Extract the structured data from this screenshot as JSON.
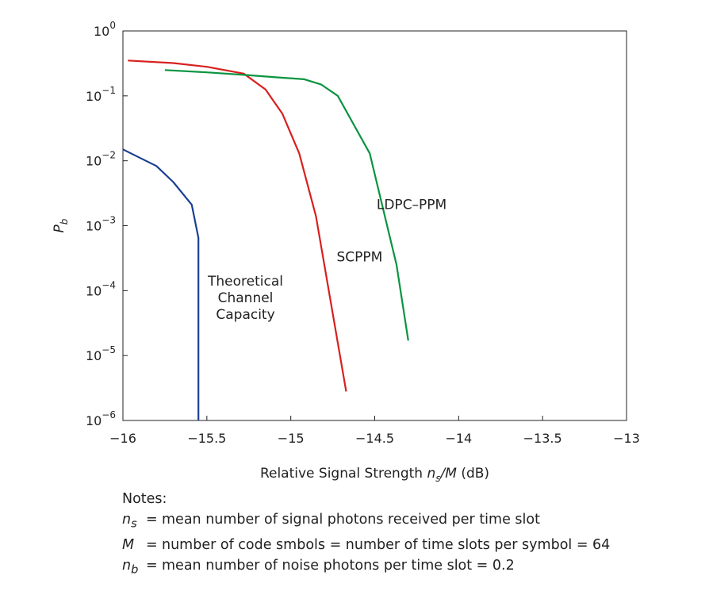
{
  "chart_data": {
    "type": "line",
    "title": "",
    "xlabel_prefix": "Relative Signal Strength ",
    "xlabel_math": "ns/M",
    "xlabel_suffix": " (dB)",
    "ylabel": "Pb",
    "xlim": [
      -16,
      -13
    ],
    "ylim_log10": [
      -6,
      0
    ],
    "y_scale": "log",
    "x_ticks": [
      -16,
      -15.5,
      -15,
      -14.5,
      -14,
      -13.5,
      -13
    ],
    "x_tick_labels": [
      "−16",
      "−15.5",
      "−15",
      "−14.5",
      "−14",
      "−13.5",
      "−13"
    ],
    "y_tick_exponents": [
      0,
      -1,
      -2,
      -3,
      -4,
      -5,
      -6
    ],
    "y_tick_exponent_labels": [
      "0",
      "−1",
      "−2",
      "−3",
      "−4",
      "−5",
      "−6"
    ],
    "y_tick_base": "10",
    "series": [
      {
        "name": "Theoretical Channel Capacity",
        "label_lines": [
          "Theoretical",
          "Channel",
          "Capacity"
        ],
        "color": "#1a3f94",
        "x": [
          -16.0,
          -15.8,
          -15.7,
          -15.59,
          -15.55,
          -15.55
        ],
        "y": [
          0.015,
          0.0083,
          0.0047,
          0.0021,
          0.00065,
          1e-06
        ]
      },
      {
        "name": "SCPPM",
        "label_lines": [
          "SCPPM"
        ],
        "color": "#d7201e",
        "x": [
          -15.97,
          -15.7,
          -15.5,
          -15.28,
          -15.15,
          -15.05,
          -14.95,
          -14.85,
          -14.67
        ],
        "y": [
          0.35,
          0.32,
          0.28,
          0.22,
          0.125,
          0.053,
          0.013,
          0.0014,
          2.8e-06
        ]
      },
      {
        "name": "LDPC–PPM",
        "label_lines": [
          "LDPC–PPM"
        ],
        "color": "#0a9440",
        "x": [
          -15.75,
          -15.5,
          -15.27,
          -15.05,
          -14.92,
          -14.82,
          -14.72,
          -14.53,
          -14.37,
          -14.3
        ],
        "y": [
          0.25,
          0.23,
          0.21,
          0.19,
          0.18,
          0.15,
          0.1,
          0.013,
          0.00025,
          1.7e-05
        ]
      }
    ]
  },
  "notes": {
    "heading": "Notes:",
    "rows": [
      {
        "symbol": "n",
        "subscript": "s",
        "eq": "=",
        "text": "mean number of signal photons received per time slot"
      },
      {
        "symbol": "M",
        "subscript": "",
        "eq": "=",
        "text": "number of code smbols = number of time slots per symbol = 64"
      },
      {
        "symbol": "n",
        "subscript": "b",
        "eq": "=",
        "text": "mean number of noise photons per time slot = 0.2"
      }
    ]
  }
}
